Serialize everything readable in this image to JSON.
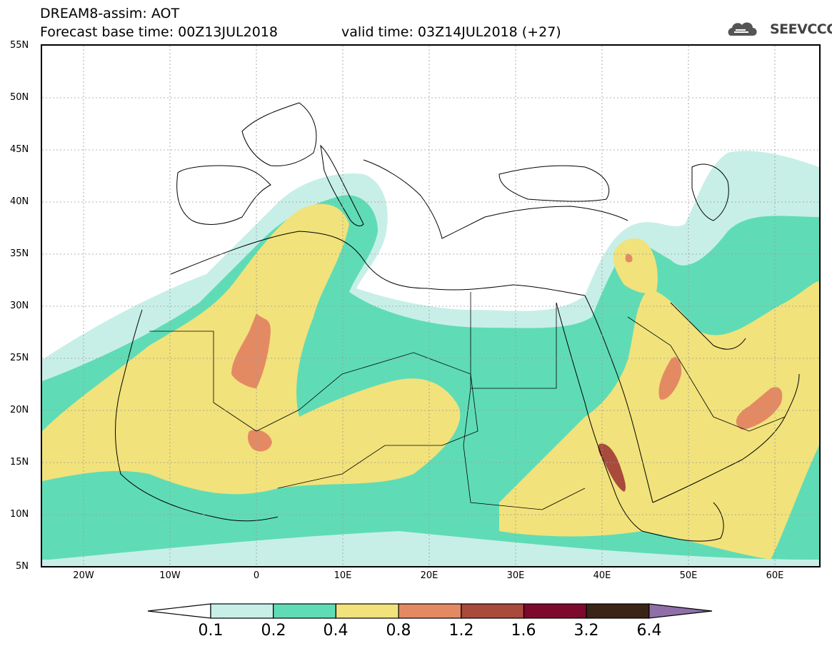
{
  "header": {
    "title": "DREAM8-assim: AOT",
    "base_time": "Forecast base time: 00Z13JUL2018",
    "valid_time": "valid time: 03Z14JUL2018 (+27)",
    "logo_text": "SEEVCCC"
  },
  "map": {
    "lat_labels": [
      "55N",
      "50N",
      "45N",
      "40N",
      "35N",
      "30N",
      "25N",
      "20N",
      "15N",
      "10N",
      "5N"
    ],
    "lon_labels": [
      "20W",
      "10W",
      "0",
      "10E",
      "20E",
      "30E",
      "40E",
      "50E",
      "60E"
    ],
    "extent": {
      "lon_min": -25,
      "lon_max": 65,
      "lat_min": 5,
      "lat_max": 55
    }
  },
  "colorbar": {
    "labels": [
      "0.1",
      "0.2",
      "0.4",
      "0.8",
      "1.2",
      "1.6",
      "3.2",
      "6.4"
    ],
    "colors": [
      "#ffffff",
      "#c7efe8",
      "#5fdcb5",
      "#f1e27b",
      "#e48a63",
      "#a84a3c",
      "#7d0a2c",
      "#3a2415",
      "#8e6fa7"
    ]
  },
  "levels_colors": {
    "aot_01_02": "#c7efe8",
    "aot_02_04": "#5fdcb5",
    "aot_04_08": "#f1e27b",
    "aot_08_12": "#e48a63",
    "aot_12_16": "#a84a3c"
  }
}
